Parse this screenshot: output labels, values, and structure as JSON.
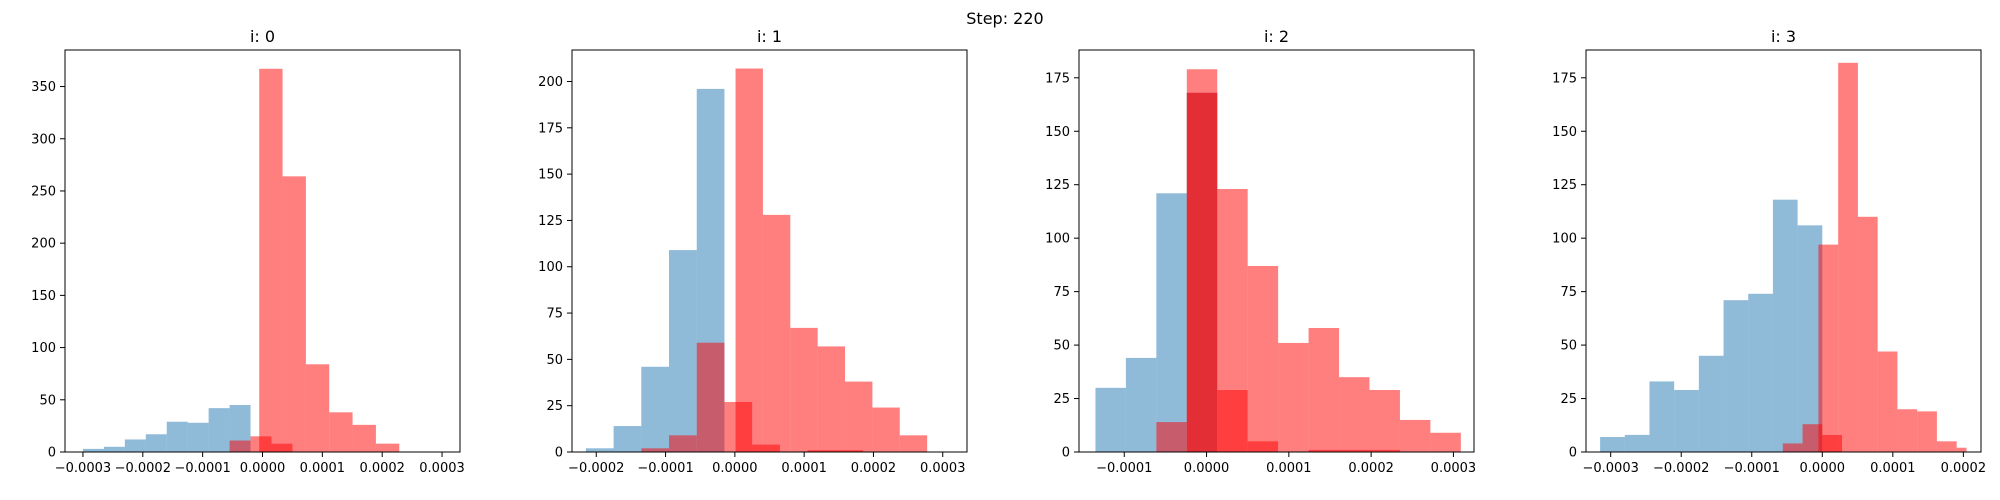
{
  "figure_title": "Step: 220",
  "colors": {
    "blue": "#1f77b4",
    "red": "#ff0000",
    "blue_alpha": 0.5,
    "red_alpha": 0.5
  },
  "chart_data": [
    {
      "type": "bar",
      "title": "i: 0",
      "xlim": [
        -0.00033,
        0.00033
      ],
      "ylim": [
        0,
        385
      ],
      "xticks": [
        -0.0003,
        -0.0002,
        -0.0001,
        0.0,
        0.0001,
        0.0002,
        0.0003
      ],
      "xtick_labels": [
        "−0.0003",
        "−0.0002",
        "−0.0001",
        "0.0000",
        "0.0001",
        "0.0002",
        "0.0003"
      ],
      "yticks": [
        0,
        50,
        100,
        150,
        200,
        250,
        300,
        350
      ],
      "series": [
        {
          "color": "blue",
          "bin_edges": [
            -0.0003,
            -0.000265,
            -0.00023,
            -0.000195,
            -0.00016,
            -0.000125,
            -9e-05,
            -5.5e-05,
            -2e-05,
            5e-06
          ],
          "counts": [
            3,
            5,
            12,
            17,
            29,
            28,
            42,
            45,
            0
          ]
        },
        {
          "color": "red",
          "bin_edges": [
            -5.5e-05,
            -2e-05,
            1.5e-05,
            5e-05,
            8.5e-05,
            0.00012,
            0.000155,
            0.00019,
            0.000225,
            0.00026,
            0.000295
          ],
          "counts": [
            11,
            15,
            8,
            0,
            0,
            0,
            0,
            0,
            0,
            0
          ]
        },
        {
          "color": "red",
          "bin_edges": [
            -5.5e-06,
            3.35e-05,
            7.25e-05,
            0.0001115,
            0.0001505,
            0.0001895,
            0.0002285,
            0.0002675,
            0.00031
          ],
          "counts": [
            367,
            264,
            84,
            38,
            26,
            8,
            0,
            0
          ]
        }
      ]
    },
    {
      "type": "bar",
      "title": "i: 1",
      "xlim": [
        -0.000235,
        0.000335
      ],
      "ylim": [
        0,
        217
      ],
      "xticks": [
        -0.0002,
        -0.0001,
        0.0,
        0.0001,
        0.0002,
        0.0003
      ],
      "xtick_labels": [
        "−0.0002",
        "−0.0001",
        "0.0000",
        "0.0001",
        "0.0002",
        "0.0003"
      ],
      "yticks": [
        0,
        25,
        50,
        75,
        100,
        125,
        150,
        175,
        200
      ],
      "series": [
        {
          "color": "blue",
          "bin_edges": [
            -0.000215,
            -0.000175,
            -0.000135,
            -9.5e-05,
            -5.5e-05,
            -1.5e-05,
            2.5e-05
          ],
          "counts": [
            2,
            14,
            46,
            109,
            196,
            0
          ]
        },
        {
          "color": "red",
          "bin_edges": [
            -0.000135,
            -9.5e-05,
            -5.5e-05,
            -1.5e-05,
            2.5e-05,
            6.5e-05,
            0.000105,
            0.000145,
            0.000185,
            0.000225,
            0.000265
          ],
          "counts": [
            2,
            9,
            59,
            27,
            4,
            0,
            1,
            1,
            0,
            0
          ]
        },
        {
          "color": "red",
          "bin_edges": [
            1e-06,
            4.05e-05,
            8e-05,
            0.0001195,
            0.000159,
            0.0001985,
            0.000238,
            0.0002775,
            0.000317
          ],
          "counts": [
            207,
            128,
            67,
            57,
            38,
            24,
            9,
            0
          ]
        }
      ]
    },
    {
      "type": "bar",
      "title": "i: 2",
      "xlim": [
        -0.000155,
        0.000325
      ],
      "ylim": [
        0,
        188
      ],
      "xticks": [
        -0.0001,
        0.0,
        0.0001,
        0.0002,
        0.0003
      ],
      "xtick_labels": [
        "−0.0001",
        "0.0000",
        "0.0001",
        "0.0002",
        "0.0003"
      ],
      "yticks": [
        0,
        25,
        50,
        75,
        100,
        125,
        150,
        175
      ],
      "series": [
        {
          "color": "blue",
          "bin_edges": [
            -0.000135,
            -9.8e-05,
            -6.1e-05,
            -2.4e-05,
            1.3e-05
          ],
          "counts": [
            30,
            44,
            121,
            168
          ]
        },
        {
          "color": "red",
          "bin_edges": [
            -6.1e-05,
            -2.4e-05,
            1.3e-05,
            5e-05,
            8.7e-05,
            0.000124,
            0.000161,
            0.000198,
            0.000235
          ],
          "counts": [
            14,
            168,
            29,
            5,
            0,
            1,
            1,
            1
          ]
        },
        {
          "color": "red",
          "bin_edges": [
            -2.4e-05,
            1.3e-05,
            5e-05,
            8.7e-05,
            0.000124,
            0.000161,
            0.000198,
            0.000235,
            0.000272,
            0.000309
          ],
          "counts": [
            179,
            123,
            87,
            51,
            58,
            35,
            29,
            15,
            9
          ]
        }
      ]
    },
    {
      "type": "bar",
      "title": "i: 3",
      "xlim": [
        -0.000335,
        0.000225
      ],
      "ylim": [
        0,
        188
      ],
      "xticks": [
        -0.0003,
        -0.0002,
        -0.0001,
        0.0,
        0.0001,
        0.0002
      ],
      "xtick_labels": [
        "−0.0003",
        "−0.0002",
        "−0.0001",
        "0.0000",
        "0.0001",
        "0.0002"
      ],
      "yticks": [
        0,
        25,
        50,
        75,
        100,
        125,
        150,
        175
      ],
      "series": [
        {
          "color": "blue",
          "bin_edges": [
            -0.000315,
            -0.00028,
            -0.000245,
            -0.00021,
            -0.000175,
            -0.00014,
            -0.000105,
            -7e-05,
            -3.5e-05,
            0.0
          ],
          "counts": [
            7,
            8,
            33,
            29,
            45,
            71,
            74,
            118,
            106
          ]
        },
        {
          "color": "red",
          "bin_edges": [
            -5.6e-05,
            -2.8e-05,
            0.0,
            2.8e-05
          ],
          "counts": [
            4,
            13,
            8
          ]
        },
        {
          "color": "red",
          "bin_edges": [
            -5.5e-06,
            2.25e-05,
            5.05e-05,
            7.85e-05,
            0.0001065,
            0.0001345,
            0.0001625,
            0.0001905,
            0.0002045
          ],
          "counts": [
            97,
            182,
            110,
            47,
            20,
            19,
            5,
            2
          ]
        }
      ]
    }
  ]
}
